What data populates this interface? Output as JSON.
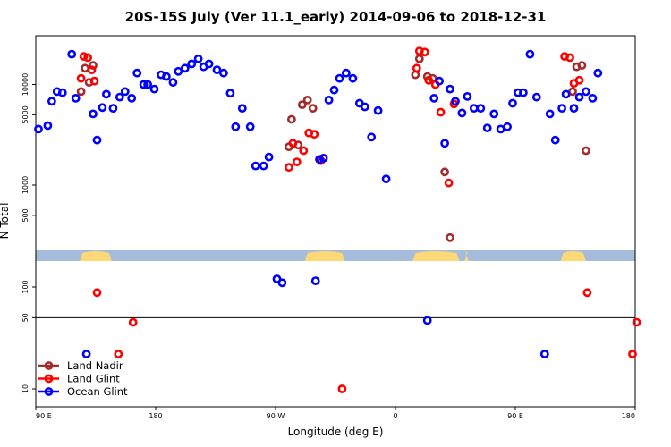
{
  "chart_data": {
    "type": "scatter",
    "title": "20S-15S July (Ver 11.1_early)   2014-09-06 to 2018-12-31",
    "xlabel": "Longitude (deg E)",
    "ylabel": "N Total",
    "y_scale": "log",
    "x_ticks": [
      {
        "value": 90,
        "label": "90 E"
      },
      {
        "value": 180,
        "label": "180"
      },
      {
        "value": 270,
        "label": "90 W"
      },
      {
        "value": 360,
        "label": "0"
      },
      {
        "value": 450,
        "label": "90 E"
      },
      {
        "value": 540,
        "label": "180"
      }
    ],
    "upper_panel": {
      "ylim": [
        200,
        40000
      ],
      "y_ticks": [
        {
          "value": 500,
          "label": "500"
        },
        {
          "value": 1000,
          "label": "1000"
        },
        {
          "value": 5000,
          "label": "5000"
        },
        {
          "value": 10000,
          "label": "10000"
        }
      ]
    },
    "lower_panel": {
      "ylim": [
        7,
        200
      ],
      "y_ticks": [
        {
          "value": 10,
          "label": "10"
        },
        {
          "value": 50,
          "label": "50"
        },
        {
          "value": 100,
          "label": "100"
        }
      ],
      "hline": 50
    },
    "land_mask_colors": {
      "ocean": "#a5bcdc",
      "land": "#fdd876"
    },
    "land_segments": [
      [
        123,
        147
      ],
      [
        292,
        322
      ],
      [
        373,
        408
      ],
      [
        412,
        415
      ],
      [
        484,
        503
      ]
    ],
    "legend": {
      "position": "bottom-left",
      "entries": [
        {
          "name": "Land Nadir",
          "color": "#a52a2a"
        },
        {
          "name": "Land Glint",
          "color": "#ff0000"
        },
        {
          "name": "Ocean Glint",
          "color": "#0000ff"
        }
      ]
    },
    "series": [
      {
        "name": "Land Nadir",
        "color": "#a52a2a",
        "points": [
          [
            124,
            8500
          ],
          [
            127,
            14500
          ],
          [
            130,
            10500
          ],
          [
            133,
            15500
          ],
          [
            280,
            2400
          ],
          [
            282,
            4500
          ],
          [
            287,
            2500
          ],
          [
            290,
            6300
          ],
          [
            294,
            7000
          ],
          [
            298,
            5800
          ],
          [
            375,
            12500
          ],
          [
            378,
            18000
          ],
          [
            384,
            12000
          ],
          [
            388,
            11500
          ],
          [
            397,
            1350
          ],
          [
            401,
            300
          ],
          [
            493,
            8500
          ],
          [
            496,
            15000
          ],
          [
            500,
            15500
          ],
          [
            503,
            2200
          ]
        ]
      },
      {
        "name": "Land Glint",
        "color": "#ff0000",
        "points": [
          [
            124,
            11500
          ],
          [
            126,
            19000
          ],
          [
            129,
            18500
          ],
          [
            132,
            14000
          ],
          [
            134,
            10800
          ],
          [
            136,
            88
          ],
          [
            152,
            22
          ],
          [
            163,
            45
          ],
          [
            280,
            1500
          ],
          [
            283,
            2600
          ],
          [
            286,
            1700
          ],
          [
            291,
            2200
          ],
          [
            295,
            3300
          ],
          [
            299,
            3200
          ],
          [
            303,
            1800
          ],
          [
            304,
            1750
          ],
          [
            320,
            10
          ],
          [
            376,
            14500
          ],
          [
            378,
            21500
          ],
          [
            382,
            21000
          ],
          [
            385,
            11000
          ],
          [
            390,
            10000
          ],
          [
            394,
            5300
          ],
          [
            400,
            1050
          ],
          [
            404,
            6400
          ],
          [
            487,
            19000
          ],
          [
            491,
            18500
          ],
          [
            494,
            10300
          ],
          [
            498,
            11000
          ],
          [
            504,
            88
          ],
          [
            538,
            22
          ],
          [
            541,
            45
          ]
        ]
      },
      {
        "name": "Ocean Glint",
        "color": "#0000ff",
        "points": [
          [
            92,
            3600
          ],
          [
            99,
            3900
          ],
          [
            102,
            6800
          ],
          [
            106,
            8500
          ],
          [
            110,
            8300
          ],
          [
            117,
            20000
          ],
          [
            120,
            7300
          ],
          [
            128,
            22
          ],
          [
            133,
            5100
          ],
          [
            136,
            2800
          ],
          [
            140,
            5900
          ],
          [
            143,
            8000
          ],
          [
            148,
            5800
          ],
          [
            153,
            7500
          ],
          [
            157,
            8500
          ],
          [
            162,
            7300
          ],
          [
            166,
            13000
          ],
          [
            171,
            10000
          ],
          [
            174,
            10000
          ],
          [
            179,
            9000
          ],
          [
            184,
            12500
          ],
          [
            188,
            12000
          ],
          [
            193,
            10500
          ],
          [
            197,
            13500
          ],
          [
            202,
            14500
          ],
          [
            207,
            16000
          ],
          [
            212,
            18000
          ],
          [
            216,
            15000
          ],
          [
            220,
            16000
          ],
          [
            226,
            14000
          ],
          [
            231,
            13000
          ],
          [
            236,
            8200
          ],
          [
            240,
            3800
          ],
          [
            245,
            5800
          ],
          [
            251,
            3800
          ],
          [
            255,
            1550
          ],
          [
            261,
            1550
          ],
          [
            265,
            1900
          ],
          [
            271,
            120
          ],
          [
            275,
            110
          ],
          [
            300,
            115
          ],
          [
            303,
            1800
          ],
          [
            306,
            1850
          ],
          [
            310,
            7000
          ],
          [
            314,
            8800
          ],
          [
            318,
            11500
          ],
          [
            323,
            13000
          ],
          [
            328,
            11500
          ],
          [
            333,
            6500
          ],
          [
            337,
            6000
          ],
          [
            342,
            3000
          ],
          [
            347,
            5500
          ],
          [
            353,
            1150
          ],
          [
            384,
            47
          ],
          [
            389,
            7300
          ],
          [
            393,
            10800
          ],
          [
            397,
            2600
          ],
          [
            401,
            9000
          ],
          [
            405,
            6800
          ],
          [
            410,
            5200
          ],
          [
            414,
            7600
          ],
          [
            419,
            5800
          ],
          [
            424,
            5800
          ],
          [
            429,
            3700
          ],
          [
            434,
            5100
          ],
          [
            439,
            3600
          ],
          [
            444,
            3800
          ],
          [
            448,
            6500
          ],
          [
            452,
            8300
          ],
          [
            456,
            8300
          ],
          [
            461,
            20000
          ],
          [
            466,
            7500
          ],
          [
            472,
            22
          ],
          [
            476,
            5100
          ],
          [
            480,
            2800
          ],
          [
            485,
            5800
          ],
          [
            488,
            8000
          ],
          [
            494,
            5800
          ],
          [
            498,
            7500
          ],
          [
            503,
            8500
          ],
          [
            508,
            7300
          ],
          [
            512,
            13000
          ]
        ]
      }
    ]
  }
}
